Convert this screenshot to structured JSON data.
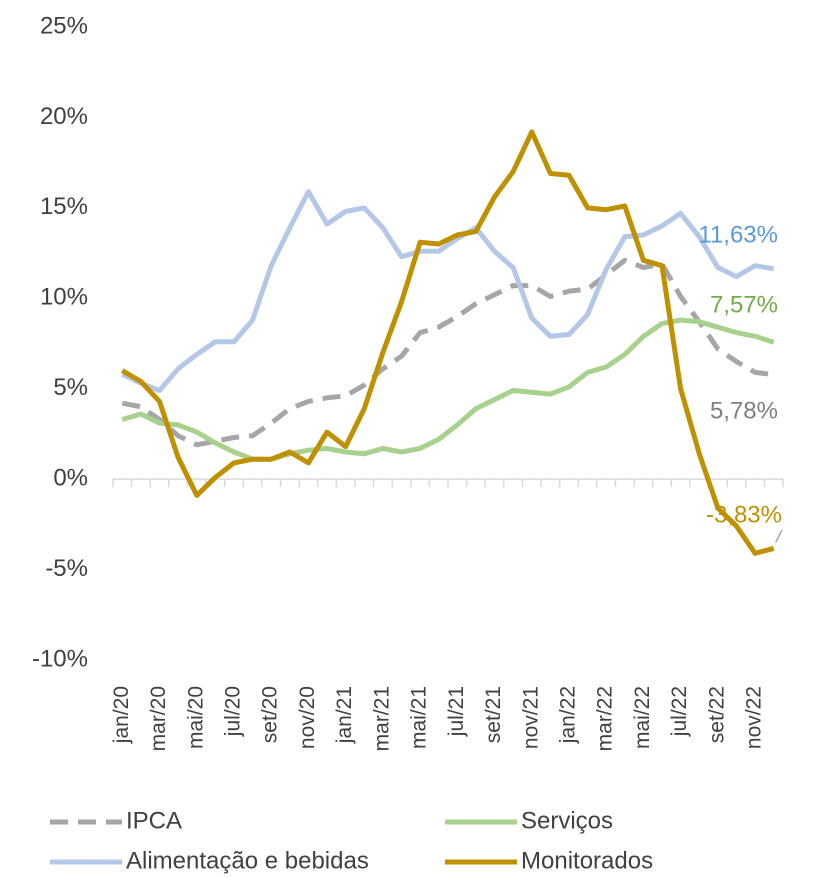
{
  "chart_data": {
    "type": "line",
    "categories": [
      "jan/20",
      null,
      "mar/20",
      null,
      "mai/20",
      null,
      "jul/20",
      null,
      "set/20",
      null,
      "nov/20",
      null,
      "jan/21",
      null,
      "mar/21",
      null,
      "mai/21",
      null,
      "jul/21",
      null,
      "set/21",
      null,
      "nov/21",
      null,
      "jan/22",
      null,
      "mar/22",
      null,
      "mai/22",
      null,
      "jul/22",
      null,
      "set/22",
      null,
      "nov/22",
      null
    ],
    "ylim": [
      -10,
      25
    ],
    "yticks": [
      {
        "value": -10,
        "label": "-10%"
      },
      {
        "value": -5,
        "label": "-5%"
      },
      {
        "value": 0,
        "label": "0%"
      },
      {
        "value": 5,
        "label": "5%"
      },
      {
        "value": 10,
        "label": "10%"
      },
      {
        "value": 15,
        "label": "15%"
      },
      {
        "value": 20,
        "label": "20%"
      },
      {
        "value": 25,
        "label": "25%"
      }
    ],
    "series": [
      {
        "name": "IPCA",
        "color": "#a6a6a6",
        "line_style": "dashed",
        "label_color": "#7f7f7f",
        "values": [
          4.2,
          4.0,
          3.3,
          2.4,
          1.9,
          2.1,
          2.3,
          2.4,
          3.1,
          3.9,
          4.3,
          4.5,
          4.6,
          5.2,
          6.1,
          6.8,
          8.1,
          8.4,
          9.0,
          9.7,
          10.2,
          10.7,
          10.7,
          10.1,
          10.4,
          10.5,
          11.3,
          12.1,
          11.7,
          11.9,
          10.1,
          8.7,
          7.2,
          6.5,
          5.9,
          5.78
        ],
        "value_labels": [
          null,
          null,
          null,
          null,
          null,
          null,
          null,
          null,
          null,
          null,
          null,
          null,
          null,
          null,
          null,
          null,
          null,
          null,
          null,
          null,
          null,
          null,
          null,
          null,
          null,
          null,
          null,
          null,
          null,
          null,
          null,
          null,
          null,
          null,
          null,
          "5,78%"
        ]
      },
      {
        "name": "Serviços",
        "color": "#a9d18e",
        "line_style": "solid",
        "label_color": "#70ad47",
        "values": [
          3.3,
          3.6,
          3.1,
          3.0,
          2.6,
          2.0,
          1.5,
          1.1,
          1.1,
          1.4,
          1.6,
          1.7,
          1.5,
          1.4,
          1.7,
          1.5,
          1.7,
          2.2,
          3.0,
          3.9,
          4.4,
          4.9,
          4.8,
          4.7,
          5.1,
          5.9,
          6.2,
          6.9,
          7.9,
          8.6,
          8.8,
          8.7,
          8.4,
          8.1,
          7.9,
          7.57
        ],
        "value_labels": [
          null,
          null,
          null,
          null,
          null,
          null,
          null,
          null,
          null,
          null,
          null,
          null,
          null,
          null,
          null,
          null,
          null,
          null,
          null,
          null,
          null,
          null,
          null,
          null,
          null,
          null,
          null,
          null,
          null,
          null,
          null,
          null,
          null,
          null,
          null,
          "7,57%"
        ]
      },
      {
        "name": "Alimentação e bebidas",
        "color": "#b4c7e7",
        "line_style": "solid",
        "label_color": "#5b9bd5",
        "values": [
          5.8,
          5.3,
          4.9,
          6.1,
          6.9,
          7.6,
          7.6,
          8.8,
          11.8,
          13.9,
          15.9,
          14.1,
          14.8,
          15.0,
          13.9,
          12.3,
          12.6,
          12.6,
          13.3,
          13.9,
          12.6,
          11.7,
          8.9,
          7.9,
          8.0,
          9.1,
          11.6,
          13.4,
          13.5,
          14.0,
          14.7,
          13.4,
          11.7,
          11.2,
          11.8,
          11.63
        ],
        "value_labels": [
          null,
          null,
          null,
          null,
          null,
          null,
          null,
          null,
          null,
          null,
          null,
          null,
          null,
          null,
          null,
          null,
          null,
          null,
          null,
          null,
          null,
          null,
          null,
          null,
          null,
          null,
          null,
          null,
          null,
          null,
          null,
          null,
          null,
          null,
          null,
          "11,63%"
        ]
      },
      {
        "name": "Monitorados",
        "color": "#bf9000",
        "line_style": "solid",
        "label_color": "#bf9000",
        "values": [
          6.0,
          5.4,
          4.3,
          1.2,
          -0.9,
          0.1,
          0.9,
          1.1,
          1.1,
          1.5,
          0.9,
          2.6,
          1.8,
          3.9,
          7.0,
          9.8,
          13.1,
          13.0,
          13.5,
          13.7,
          15.6,
          17.0,
          19.2,
          16.9,
          16.8,
          15.0,
          14.9,
          15.1,
          12.1,
          11.8,
          5.0,
          1.4,
          -1.6,
          -2.6,
          -4.1,
          -3.83
        ],
        "value_labels": [
          null,
          null,
          null,
          null,
          null,
          null,
          null,
          null,
          null,
          null,
          null,
          null,
          null,
          null,
          null,
          null,
          null,
          null,
          null,
          null,
          null,
          null,
          null,
          null,
          null,
          null,
          null,
          null,
          null,
          null,
          null,
          null,
          null,
          null,
          null,
          "-3,83%"
        ]
      }
    ]
  }
}
